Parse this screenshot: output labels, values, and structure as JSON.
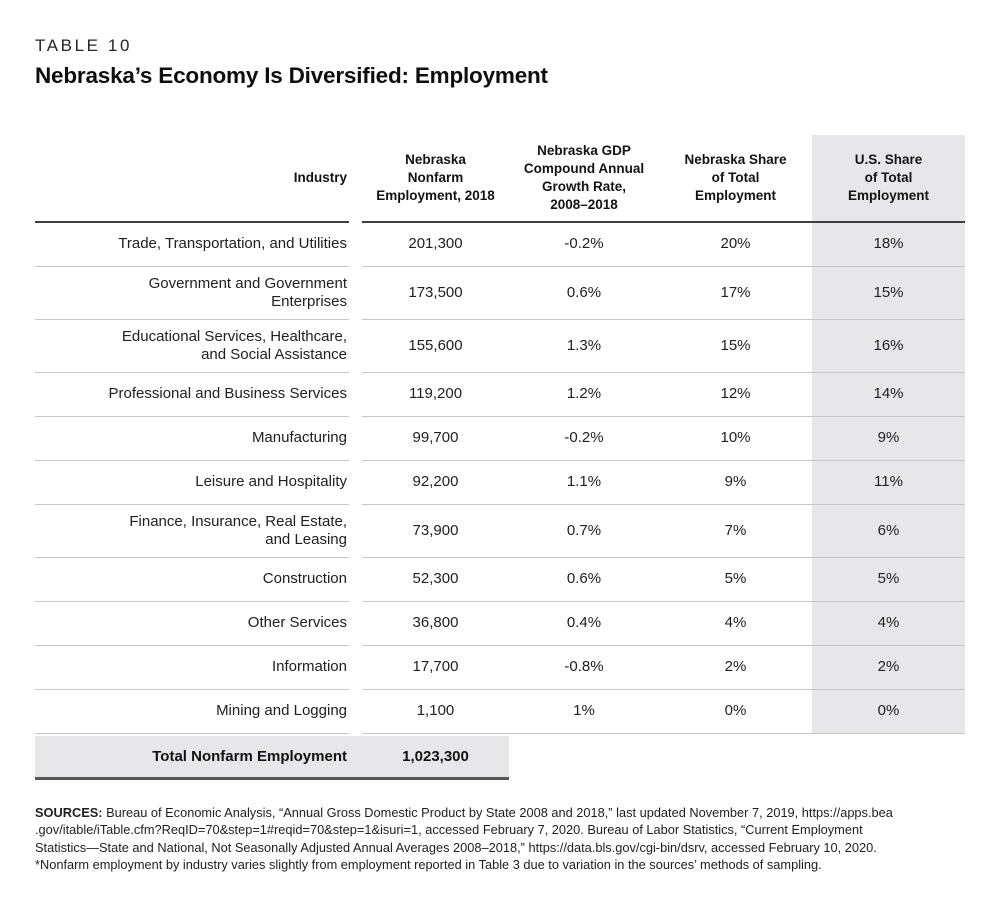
{
  "page": {
    "eyebrow": "TABLE 10",
    "title": "Nebraska’s Economy Is Diversified: Employment"
  },
  "table": {
    "header": {
      "industry": "Industry",
      "employment": "Nebraska\nNonfarm\nEmployment, 2018",
      "growth": "Nebraska GDP\nCompound Annual\nGrowth Rate,\n2008–2018",
      "ne_share": "Nebraska Share\nof Total\nEmployment",
      "us_share": "U.S. Share\nof Total\nEmployment"
    },
    "rows": [
      {
        "industry": "Trade, Transportation, and Utilities",
        "employment": "201,300",
        "growth": "-0.2%",
        "ne_share": "20%",
        "us_share": "18%"
      },
      {
        "industry": "Government and Government\nEnterprises",
        "employment": "173,500",
        "growth": "0.6%",
        "ne_share": "17%",
        "us_share": "15%"
      },
      {
        "industry": "Educational Services, Healthcare,\nand Social Assistance",
        "employment": "155,600",
        "growth": "1.3%",
        "ne_share": "15%",
        "us_share": "16%"
      },
      {
        "industry": "Professional and Business Services",
        "employment": "119,200",
        "growth": "1.2%",
        "ne_share": "12%",
        "us_share": "14%"
      },
      {
        "industry": "Manufacturing",
        "employment": "99,700",
        "growth": "-0.2%",
        "ne_share": "10%",
        "us_share": "9%"
      },
      {
        "industry": "Leisure and Hospitality",
        "employment": "92,200",
        "growth": "1.1%",
        "ne_share": "9%",
        "us_share": "11%"
      },
      {
        "industry": "Finance, Insurance, Real Estate,\nand Leasing",
        "employment": "73,900",
        "growth": "0.7%",
        "ne_share": "7%",
        "us_share": "6%"
      },
      {
        "industry": "Construction",
        "employment": "52,300",
        "growth": "0.6%",
        "ne_share": "5%",
        "us_share": "5%"
      },
      {
        "industry": "Other Services",
        "employment": "36,800",
        "growth": "0.4%",
        "ne_share": "4%",
        "us_share": "4%"
      },
      {
        "industry": "Information",
        "employment": "17,700",
        "growth": "-0.8%",
        "ne_share": "2%",
        "us_share": "2%"
      },
      {
        "industry": "Mining and Logging",
        "employment": "1,100",
        "growth": "1%",
        "ne_share": "0%",
        "us_share": "0%"
      }
    ],
    "total": {
      "label": "Total Nonfarm Employment",
      "value": "1,023,300"
    }
  },
  "footer": {
    "sources_label": "SOURCES:",
    "lines": [
      " Bureau of Economic Analysis, “Annual Gross Domestic Product by State 2008 and 2018,” last updated November 7, 2019, https://apps.bea",
      ".gov/itable/iTable.cfm?ReqID=70&step=1#reqid=70&step=1&isuri=1, accessed February 7, 2020. Bureau of Labor Statistics, “Current Employment",
      "Statistics—State and National, Not Seasonally Adjusted Annual Averages 2008–2018,” https://data.bls.gov/cgi-bin/dsrv, accessed February 10, 2020.",
      "*Nonfarm employment by industry varies slightly from employment reported in Table 3 due to variation in the sources’ methods of sampling."
    ]
  },
  "colors": {
    "column_shade": "#e7e7e9",
    "header_rule": "#3e3e40",
    "row_separator": "#c6c6c8",
    "total_rule": "#55565b"
  }
}
